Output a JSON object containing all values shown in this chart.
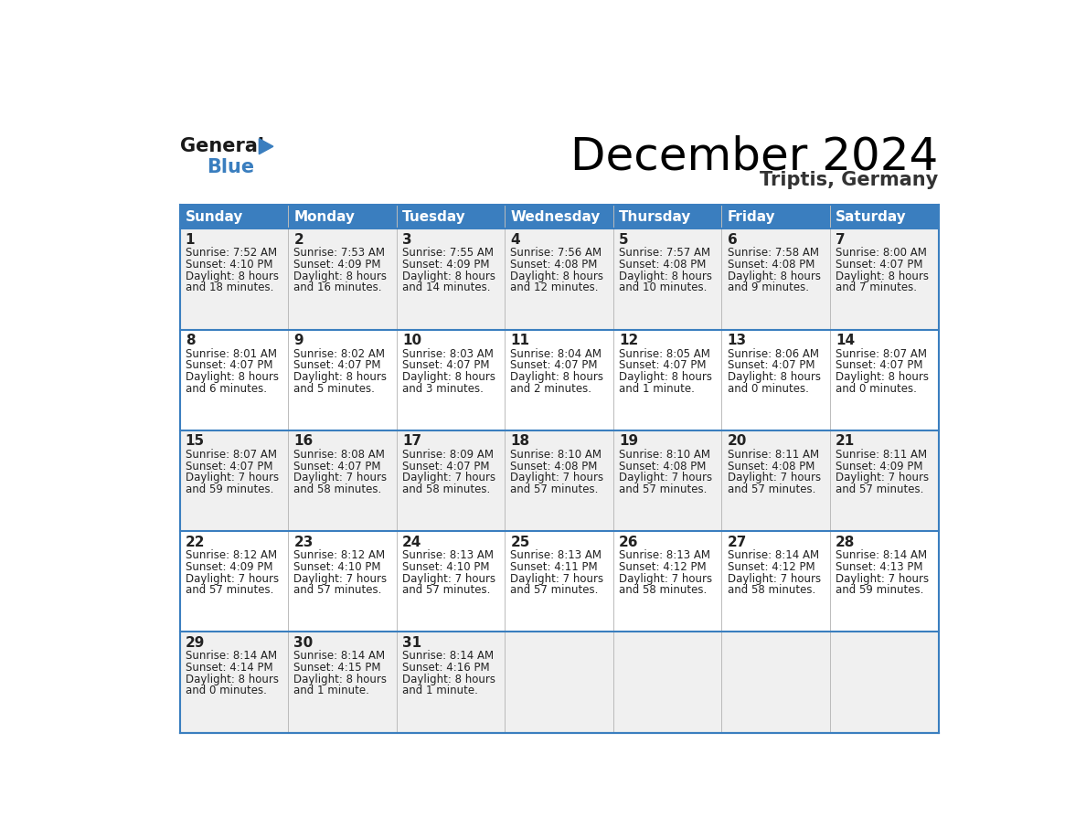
{
  "title": "December 2024",
  "subtitle": "Triptis, Germany",
  "header_color": "#3a7ebf",
  "header_text_color": "#ffffff",
  "cell_bg_odd": "#f0f0f0",
  "cell_bg_even": "#ffffff",
  "border_color": "#3a7ebf",
  "days_of_week": [
    "Sunday",
    "Monday",
    "Tuesday",
    "Wednesday",
    "Thursday",
    "Friday",
    "Saturday"
  ],
  "calendar": [
    [
      {
        "day": 1,
        "sunrise": "7:52 AM",
        "sunset": "4:10 PM",
        "daylight": "8 hours and 18 minutes."
      },
      {
        "day": 2,
        "sunrise": "7:53 AM",
        "sunset": "4:09 PM",
        "daylight": "8 hours and 16 minutes."
      },
      {
        "day": 3,
        "sunrise": "7:55 AM",
        "sunset": "4:09 PM",
        "daylight": "8 hours and 14 minutes."
      },
      {
        "day": 4,
        "sunrise": "7:56 AM",
        "sunset": "4:08 PM",
        "daylight": "8 hours and 12 minutes."
      },
      {
        "day": 5,
        "sunrise": "7:57 AM",
        "sunset": "4:08 PM",
        "daylight": "8 hours and 10 minutes."
      },
      {
        "day": 6,
        "sunrise": "7:58 AM",
        "sunset": "4:08 PM",
        "daylight": "8 hours and 9 minutes."
      },
      {
        "day": 7,
        "sunrise": "8:00 AM",
        "sunset": "4:07 PM",
        "daylight": "8 hours and 7 minutes."
      }
    ],
    [
      {
        "day": 8,
        "sunrise": "8:01 AM",
        "sunset": "4:07 PM",
        "daylight": "8 hours and 6 minutes."
      },
      {
        "day": 9,
        "sunrise": "8:02 AM",
        "sunset": "4:07 PM",
        "daylight": "8 hours and 5 minutes."
      },
      {
        "day": 10,
        "sunrise": "8:03 AM",
        "sunset": "4:07 PM",
        "daylight": "8 hours and 3 minutes."
      },
      {
        "day": 11,
        "sunrise": "8:04 AM",
        "sunset": "4:07 PM",
        "daylight": "8 hours and 2 minutes."
      },
      {
        "day": 12,
        "sunrise": "8:05 AM",
        "sunset": "4:07 PM",
        "daylight": "8 hours and 1 minute."
      },
      {
        "day": 13,
        "sunrise": "8:06 AM",
        "sunset": "4:07 PM",
        "daylight": "8 hours and 0 minutes."
      },
      {
        "day": 14,
        "sunrise": "8:07 AM",
        "sunset": "4:07 PM",
        "daylight": "8 hours and 0 minutes."
      }
    ],
    [
      {
        "day": 15,
        "sunrise": "8:07 AM",
        "sunset": "4:07 PM",
        "daylight": "7 hours and 59 minutes."
      },
      {
        "day": 16,
        "sunrise": "8:08 AM",
        "sunset": "4:07 PM",
        "daylight": "7 hours and 58 minutes."
      },
      {
        "day": 17,
        "sunrise": "8:09 AM",
        "sunset": "4:07 PM",
        "daylight": "7 hours and 58 minutes."
      },
      {
        "day": 18,
        "sunrise": "8:10 AM",
        "sunset": "4:08 PM",
        "daylight": "7 hours and 57 minutes."
      },
      {
        "day": 19,
        "sunrise": "8:10 AM",
        "sunset": "4:08 PM",
        "daylight": "7 hours and 57 minutes."
      },
      {
        "day": 20,
        "sunrise": "8:11 AM",
        "sunset": "4:08 PM",
        "daylight": "7 hours and 57 minutes."
      },
      {
        "day": 21,
        "sunrise": "8:11 AM",
        "sunset": "4:09 PM",
        "daylight": "7 hours and 57 minutes."
      }
    ],
    [
      {
        "day": 22,
        "sunrise": "8:12 AM",
        "sunset": "4:09 PM",
        "daylight": "7 hours and 57 minutes."
      },
      {
        "day": 23,
        "sunrise": "8:12 AM",
        "sunset": "4:10 PM",
        "daylight": "7 hours and 57 minutes."
      },
      {
        "day": 24,
        "sunrise": "8:13 AM",
        "sunset": "4:10 PM",
        "daylight": "7 hours and 57 minutes."
      },
      {
        "day": 25,
        "sunrise": "8:13 AM",
        "sunset": "4:11 PM",
        "daylight": "7 hours and 57 minutes."
      },
      {
        "day": 26,
        "sunrise": "8:13 AM",
        "sunset": "4:12 PM",
        "daylight": "7 hours and 58 minutes."
      },
      {
        "day": 27,
        "sunrise": "8:14 AM",
        "sunset": "4:12 PM",
        "daylight": "7 hours and 58 minutes."
      },
      {
        "day": 28,
        "sunrise": "8:14 AM",
        "sunset": "4:13 PM",
        "daylight": "7 hours and 59 minutes."
      }
    ],
    [
      {
        "day": 29,
        "sunrise": "8:14 AM",
        "sunset": "4:14 PM",
        "daylight": "8 hours and 0 minutes."
      },
      {
        "day": 30,
        "sunrise": "8:14 AM",
        "sunset": "4:15 PM",
        "daylight": "8 hours and 1 minute."
      },
      {
        "day": 31,
        "sunrise": "8:14 AM",
        "sunset": "4:16 PM",
        "daylight": "8 hours and 1 minute."
      },
      null,
      null,
      null,
      null
    ]
  ],
  "logo_text1": "General",
  "logo_text2": "Blue",
  "logo_color1": "#1a1a1a",
  "logo_color2": "#3a7ebf",
  "logo_triangle_color": "#3a7ebf",
  "title_fontsize": 36,
  "subtitle_fontsize": 15,
  "header_fontsize": 11,
  "day_num_fontsize": 11,
  "cell_text_fontsize": 8.5
}
